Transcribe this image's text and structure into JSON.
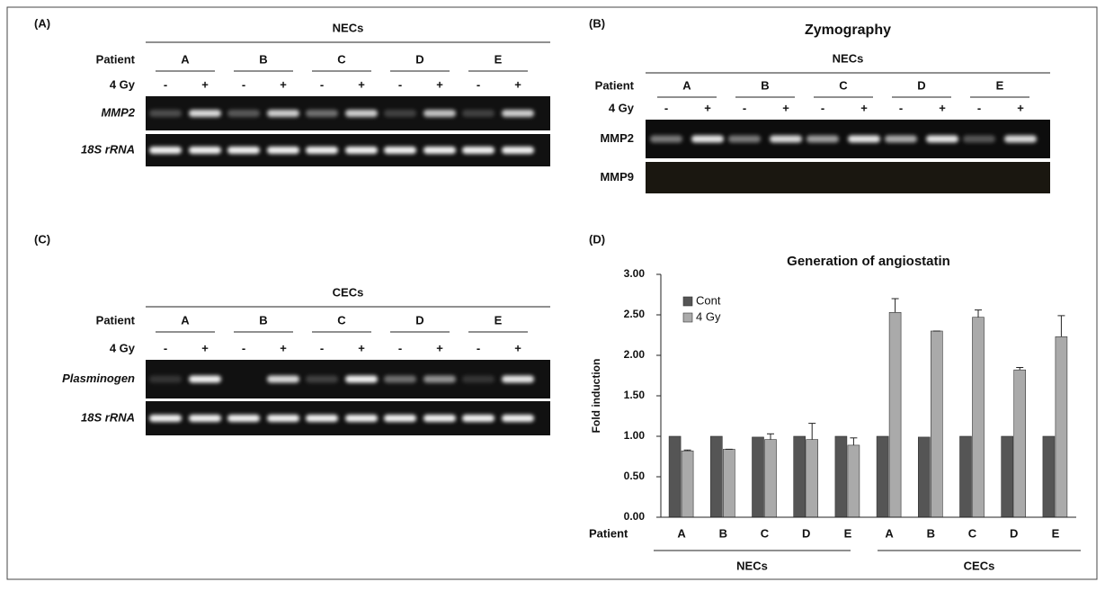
{
  "panels": {
    "a": {
      "label": "(A)",
      "group": "NECs",
      "row_patient": "Patient",
      "patients": [
        "A",
        "B",
        "C",
        "D",
        "E"
      ],
      "row_dose": "4 Gy",
      "dose_signs": [
        "-",
        "+"
      ],
      "bands": [
        "MMP2",
        "18S rRNA"
      ]
    },
    "b": {
      "label": "(B)",
      "title": "Zymography",
      "group": "NECs",
      "row_patient": "Patient",
      "patients": [
        "A",
        "B",
        "C",
        "D",
        "E"
      ],
      "row_dose": "4 Gy",
      "dose_signs": [
        "-",
        "+"
      ],
      "bands": [
        "MMP2",
        "MMP9"
      ]
    },
    "c": {
      "label": "(C)",
      "group": "CECs",
      "row_patient": "Patient",
      "patients": [
        "A",
        "B",
        "C",
        "D",
        "E"
      ],
      "row_dose": "4 Gy",
      "dose_signs": [
        "-",
        "+"
      ],
      "bands": [
        "Plasminogen",
        "18S rRNA"
      ]
    },
    "d": {
      "label": "(D)"
    }
  },
  "chart_data": {
    "type": "bar",
    "title": "Generation of angiostatin",
    "ylabel": "Fold induction",
    "x_row_label": "Patient",
    "categories": [
      "A",
      "B",
      "C",
      "D",
      "E",
      "A",
      "B",
      "C",
      "D",
      "E"
    ],
    "category_groups": [
      "NECs",
      "CECs"
    ],
    "series": [
      {
        "name": "Cont",
        "color": "#555555",
        "values": [
          1.0,
          1.0,
          0.99,
          1.0,
          1.0,
          1.0,
          0.99,
          1.0,
          1.0,
          1.0
        ]
      },
      {
        "name": "4 Gy",
        "color": "#aaaaaa",
        "values": [
          0.82,
          0.84,
          0.96,
          0.96,
          0.89,
          2.53,
          2.3,
          2.47,
          1.82,
          2.23
        ],
        "errors": [
          0.01,
          0.0,
          0.07,
          0.2,
          0.09,
          0.17,
          0.0,
          0.09,
          0.03,
          0.26
        ]
      }
    ],
    "ylim": [
      0,
      3
    ],
    "yticks": [
      {
        "value": 0,
        "label": "0.00"
      },
      {
        "value": 0.5,
        "label": "0.50"
      },
      {
        "value": 1,
        "label": "1.00"
      },
      {
        "value": 1.5,
        "label": "1.50"
      },
      {
        "value": 2,
        "label": "2.00"
      },
      {
        "value": 2.5,
        "label": "2.50"
      },
      {
        "value": 3,
        "label": "3.00"
      }
    ],
    "legend": "upper left"
  }
}
